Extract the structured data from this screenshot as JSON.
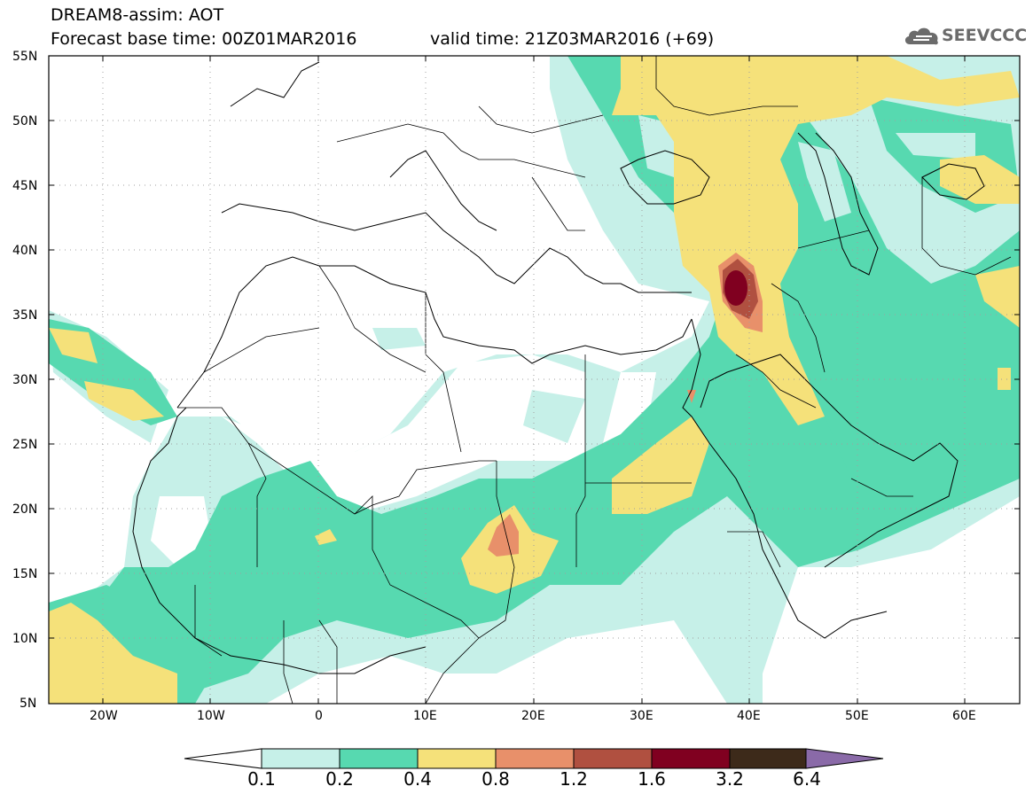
{
  "header": {
    "title": "DREAM8-assim: AOT",
    "base_time": "Forecast base time: 00Z01MAR2016",
    "valid_time": "valid time: 21Z03MAR2016 (+69)"
  },
  "logo": {
    "text": "SEEVCCC",
    "icon": "cloud-icon"
  },
  "map": {
    "lat_labels": [
      "55N",
      "50N",
      "45N",
      "40N",
      "35N",
      "30N",
      "25N",
      "20N",
      "15N",
      "10N",
      "5N"
    ],
    "lon_labels": [
      "20W",
      "10W",
      "0",
      "10E",
      "20E",
      "30E",
      "40E",
      "50E",
      "60E"
    ],
    "lon_range": [
      -25,
      65
    ],
    "lat_range": [
      5,
      55
    ],
    "grid": "dotted"
  },
  "colorbar": {
    "labels": [
      "0.1",
      "0.2",
      "0.4",
      "0.8",
      "1.2",
      "1.6",
      "3.2",
      "6.4"
    ],
    "colors": [
      "#ffffff",
      "#c6f0e8",
      "#57d9b0",
      "#f5e17a",
      "#e8906a",
      "#b05040",
      "#800020",
      "#3d2a1a",
      "#8a6aa8"
    ]
  }
}
